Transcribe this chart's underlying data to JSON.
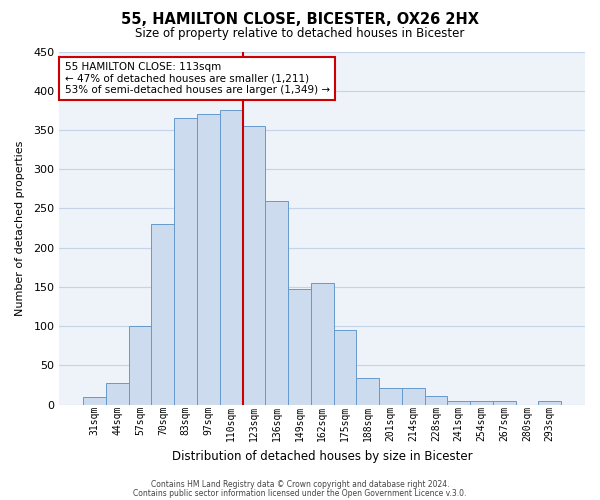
{
  "title": "55, HAMILTON CLOSE, BICESTER, OX26 2HX",
  "subtitle": "Size of property relative to detached houses in Bicester",
  "xlabel": "Distribution of detached houses by size in Bicester",
  "ylabel": "Number of detached properties",
  "bar_labels": [
    "31sqm",
    "44sqm",
    "57sqm",
    "70sqm",
    "83sqm",
    "97sqm",
    "110sqm",
    "123sqm",
    "136sqm",
    "149sqm",
    "162sqm",
    "175sqm",
    "188sqm",
    "201sqm",
    "214sqm",
    "228sqm",
    "241sqm",
    "254sqm",
    "267sqm",
    "280sqm",
    "293sqm"
  ],
  "bar_heights": [
    10,
    27,
    100,
    230,
    365,
    370,
    375,
    355,
    260,
    147,
    155,
    95,
    34,
    21,
    21,
    11,
    5,
    5,
    5,
    0,
    4
  ],
  "bar_color": "#ccdcee",
  "bar_edge_color": "#6699cc",
  "ylim": [
    0,
    450
  ],
  "yticks": [
    0,
    50,
    100,
    150,
    200,
    250,
    300,
    350,
    400,
    450
  ],
  "vline_index": 6,
  "vline_color": "#cc0000",
  "annotation_title": "55 HAMILTON CLOSE: 113sqm",
  "annotation_line1": "← 47% of detached houses are smaller (1,211)",
  "annotation_line2": "53% of semi-detached houses are larger (1,349) →",
  "annotation_box_color": "#cc0000",
  "grid_color": "#c5d3e8",
  "background_color": "#eef2f9",
  "footer_line1": "Contains HM Land Registry data © Crown copyright and database right 2024.",
  "footer_line2": "Contains public sector information licensed under the Open Government Licence v.3.0."
}
